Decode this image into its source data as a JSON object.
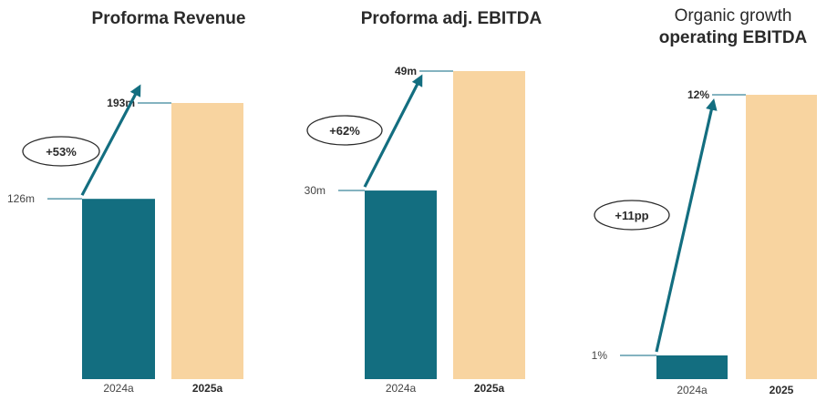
{
  "colors": {
    "teal": "#136e80",
    "peach": "#f8d4a0",
    "line": "#5b9aab",
    "text": "#2a2a2a",
    "muted": "#444444"
  },
  "chart_data": [
    {
      "type": "bar",
      "title_lines": [
        {
          "text": "Proforma Revenue",
          "bold": true
        }
      ],
      "categories": [
        "2024a",
        "2025a"
      ],
      "values": [
        126,
        193
      ],
      "value_labels": [
        "126m",
        "193m"
      ],
      "growth_label": "+53%",
      "ylim": [
        0,
        193
      ]
    },
    {
      "type": "bar",
      "title_lines": [
        {
          "text": "Proforma adj. EBITDA",
          "bold": true
        }
      ],
      "categories": [
        "2024a",
        "2025a"
      ],
      "values": [
        30,
        49
      ],
      "value_labels": [
        "30m",
        "49m"
      ],
      "growth_label": "+62%",
      "ylim": [
        0,
        49
      ]
    },
    {
      "type": "bar",
      "title_lines": [
        {
          "text": "Organic growth",
          "bold": false
        },
        {
          "text": "operating EBITDA",
          "bold": true
        }
      ],
      "categories": [
        "2024a",
        "2025"
      ],
      "values": [
        1,
        12
      ],
      "value_labels": [
        "1%",
        "12%"
      ],
      "growth_label": "+11pp",
      "ylim": [
        0,
        12
      ]
    }
  ]
}
